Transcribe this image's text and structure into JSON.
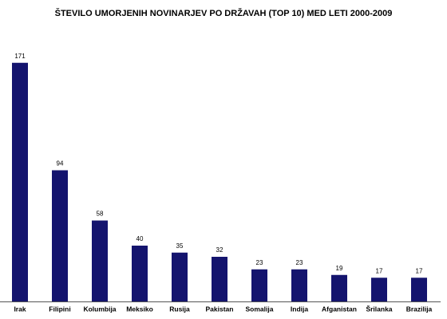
{
  "chart_data": {
    "type": "bar",
    "title": "ŠTEVILO UMORJENIH NOVINARJEV PO DRŽAVAH (TOP 10) MED LETI 2000-2009",
    "categories": [
      "Irak",
      "Filipini",
      "Kolumbija",
      "Meksiko",
      "Rusija",
      "Pakistan",
      "Somalija",
      "Indija",
      "Afganistan",
      "Šrilanka",
      "Brazilija"
    ],
    "values": [
      171,
      94,
      58,
      40,
      35,
      32,
      23,
      23,
      19,
      17,
      17
    ],
    "color": "#14146e",
    "ylim": [
      0,
      180
    ]
  }
}
